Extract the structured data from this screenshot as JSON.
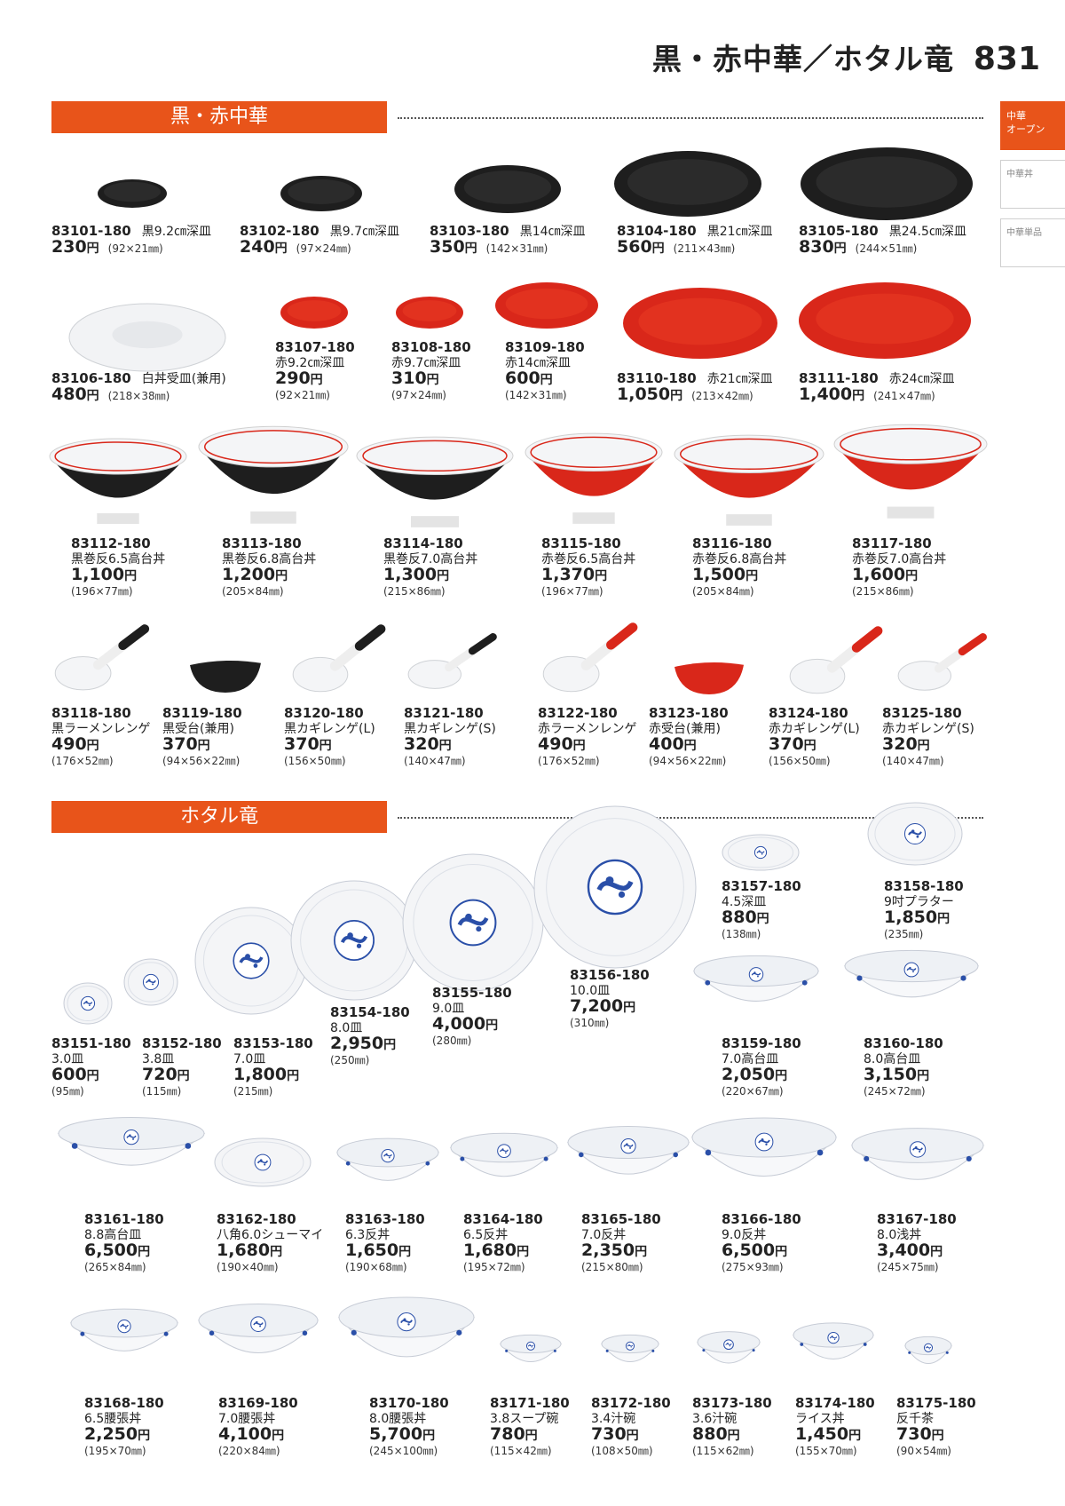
{
  "header": {
    "title": "黒・赤中華／ホタル竜",
    "page_number": "831"
  },
  "side_tabs": [
    {
      "label": "中華\nオープン",
      "active": true
    },
    {
      "label": "中華丼",
      "active": false
    },
    {
      "label": "中華単品",
      "active": false
    }
  ],
  "sections": [
    {
      "title": "黒・赤中華"
    },
    {
      "title": "ホタル竜"
    }
  ],
  "colors": {
    "accent": "#e8541a",
    "black_glaze": "#1e1e1e",
    "red_glaze": "#d9271a",
    "white": "#f4f5f7",
    "blue_motif": "#2a4fa8"
  },
  "currency": "円",
  "products": [
    {
      "code": "83101-180",
      "name": "黒9.2㎝深皿",
      "price": "230",
      "size": "(92×21㎜)",
      "inline": true
    },
    {
      "code": "83102-180",
      "name": "黒9.7㎝深皿",
      "price": "240",
      "size": "(97×24㎜)",
      "inline": true
    },
    {
      "code": "83103-180",
      "name": "黒14㎝深皿",
      "price": "350",
      "size": "(142×31㎜)",
      "inline": true
    },
    {
      "code": "83104-180",
      "name": "黒21㎝深皿",
      "price": "560",
      "size": "(211×43㎜)",
      "inline": true
    },
    {
      "code": "83105-180",
      "name": "黒24.5㎝深皿",
      "price": "830",
      "size": "(244×51㎜)",
      "inline": true
    },
    {
      "code": "83106-180",
      "name": "白丼受皿(兼用)",
      "price": "480",
      "size": "(218×38㎜)",
      "inline": true
    },
    {
      "code": "83107-180",
      "name": "赤9.2㎝深皿",
      "price": "290",
      "size": "(92×21㎜)",
      "inline": false
    },
    {
      "code": "83108-180",
      "name": "赤9.7㎝深皿",
      "price": "310",
      "size": "(97×24㎜)",
      "inline": false
    },
    {
      "code": "83109-180",
      "name": "赤14㎝深皿",
      "price": "600",
      "size": "(142×31㎜)",
      "inline": false
    },
    {
      "code": "83110-180",
      "name": "赤21㎝深皿",
      "price": "1,050",
      "size": "(213×42㎜)",
      "inline": true
    },
    {
      "code": "83111-180",
      "name": "赤24㎝深皿",
      "price": "1,400",
      "size": "(241×47㎜)",
      "inline": true
    },
    {
      "code": "83112-180",
      "name": "黒巻反6.5高台丼",
      "price": "1,100",
      "size": "(196×77㎜)",
      "inline": false
    },
    {
      "code": "83113-180",
      "name": "黒巻反6.8高台丼",
      "price": "1,200",
      "size": "(205×84㎜)",
      "inline": false
    },
    {
      "code": "83114-180",
      "name": "黒巻反7.0高台丼",
      "price": "1,300",
      "size": "(215×86㎜)",
      "inline": false
    },
    {
      "code": "83115-180",
      "name": "赤巻反6.5高台丼",
      "price": "1,370",
      "size": "(196×77㎜)",
      "inline": false
    },
    {
      "code": "83116-180",
      "name": "赤巻反6.8高台丼",
      "price": "1,500",
      "size": "(205×84㎜)",
      "inline": false
    },
    {
      "code": "83117-180",
      "name": "赤巻反7.0高台丼",
      "price": "1,600",
      "size": "(215×86㎜)",
      "inline": false
    },
    {
      "code": "83118-180",
      "name": "黒ラーメンレンゲ",
      "price": "490",
      "size": "(176×52㎜)",
      "inline": false
    },
    {
      "code": "83119-180",
      "name": "黒受台(兼用)",
      "price": "370",
      "size": "(94×56×22㎜)",
      "inline": false
    },
    {
      "code": "83120-180",
      "name": "黒カギレンゲ(L)",
      "price": "370",
      "size": "(156×50㎜)",
      "inline": false
    },
    {
      "code": "83121-180",
      "name": "黒カギレンゲ(S)",
      "price": "320",
      "size": "(140×47㎜)",
      "inline": false
    },
    {
      "code": "83122-180",
      "name": "赤ラーメンレンゲ",
      "price": "490",
      "size": "(176×52㎜)",
      "inline": false
    },
    {
      "code": "83123-180",
      "name": "赤受台(兼用)",
      "price": "400",
      "size": "(94×56×22㎜)",
      "inline": false
    },
    {
      "code": "83124-180",
      "name": "赤カギレンゲ(L)",
      "price": "370",
      "size": "(156×50㎜)",
      "inline": false
    },
    {
      "code": "83125-180",
      "name": "赤カギレンゲ(S)",
      "price": "320",
      "size": "(140×47㎜)",
      "inline": false
    },
    {
      "code": "83151-180",
      "name": "3.0皿",
      "price": "600",
      "size": "(95㎜)",
      "inline": false
    },
    {
      "code": "83152-180",
      "name": "3.8皿",
      "price": "720",
      "size": "(115㎜)",
      "inline": false
    },
    {
      "code": "83153-180",
      "name": "7.0皿",
      "price": "1,800",
      "size": "(215㎜)",
      "inline": false
    },
    {
      "code": "83154-180",
      "name": "8.0皿",
      "price": "2,950",
      "size": "(250㎜)",
      "inline": false
    },
    {
      "code": "83155-180",
      "name": "9.0皿",
      "price": "4,000",
      "size": "(280㎜)",
      "inline": false
    },
    {
      "code": "83156-180",
      "name": "10.0皿",
      "price": "7,200",
      "size": "(310㎜)",
      "inline": false
    },
    {
      "code": "83157-180",
      "name": "4.5深皿",
      "price": "880",
      "size": "(138㎜)",
      "inline": false
    },
    {
      "code": "83158-180",
      "name": "9吋プラター",
      "price": "1,850",
      "size": "(235㎜)",
      "inline": false
    },
    {
      "code": "83159-180",
      "name": "7.0高台皿",
      "price": "2,050",
      "size": "(220×67㎜)",
      "inline": false
    },
    {
      "code": "83160-180",
      "name": "8.0高台皿",
      "price": "3,150",
      "size": "(245×72㎜)",
      "inline": false
    },
    {
      "code": "83161-180",
      "name": "8.8高台皿",
      "price": "6,500",
      "size": "(265×84㎜)",
      "inline": false
    },
    {
      "code": "83162-180",
      "name": "八角6.0シューマイ",
      "price": "1,680",
      "size": "(190×40㎜)",
      "inline": false
    },
    {
      "code": "83163-180",
      "name": "6.3反丼",
      "price": "1,650",
      "size": "(190×68㎜)",
      "inline": false
    },
    {
      "code": "83164-180",
      "name": "6.5反丼",
      "price": "1,680",
      "size": "(195×72㎜)",
      "inline": false
    },
    {
      "code": "83165-180",
      "name": "7.0反丼",
      "price": "2,350",
      "size": "(215×80㎜)",
      "inline": false
    },
    {
      "code": "83166-180",
      "name": "9.0反丼",
      "price": "6,500",
      "size": "(275×93㎜)",
      "inline": false
    },
    {
      "code": "83167-180",
      "name": "8.0浅丼",
      "price": "3,400",
      "size": "(245×75㎜)",
      "inline": false
    },
    {
      "code": "83168-180",
      "name": "6.5腰張丼",
      "price": "2,250",
      "size": "(195×70㎜)",
      "inline": false
    },
    {
      "code": "83169-180",
      "name": "7.0腰張丼",
      "price": "4,100",
      "size": "(220×84㎜)",
      "inline": false
    },
    {
      "code": "83170-180",
      "name": "8.0腰張丼",
      "price": "5,700",
      "size": "(245×100㎜)",
      "inline": false
    },
    {
      "code": "83171-180",
      "name": "3.8スープ碗",
      "price": "780",
      "size": "(115×42㎜)",
      "inline": false
    },
    {
      "code": "83172-180",
      "name": "3.4汁碗",
      "price": "730",
      "size": "(108×50㎜)",
      "inline": false
    },
    {
      "code": "83173-180",
      "name": "3.6汁碗",
      "price": "880",
      "size": "(115×62㎜)",
      "inline": false
    },
    {
      "code": "83174-180",
      "name": "ライス丼",
      "price": "1,450",
      "size": "(155×70㎜)",
      "inline": false
    },
    {
      "code": "83175-180",
      "name": "反千茶",
      "price": "730",
      "size": "(90×54㎜)",
      "inline": false
    }
  ]
}
